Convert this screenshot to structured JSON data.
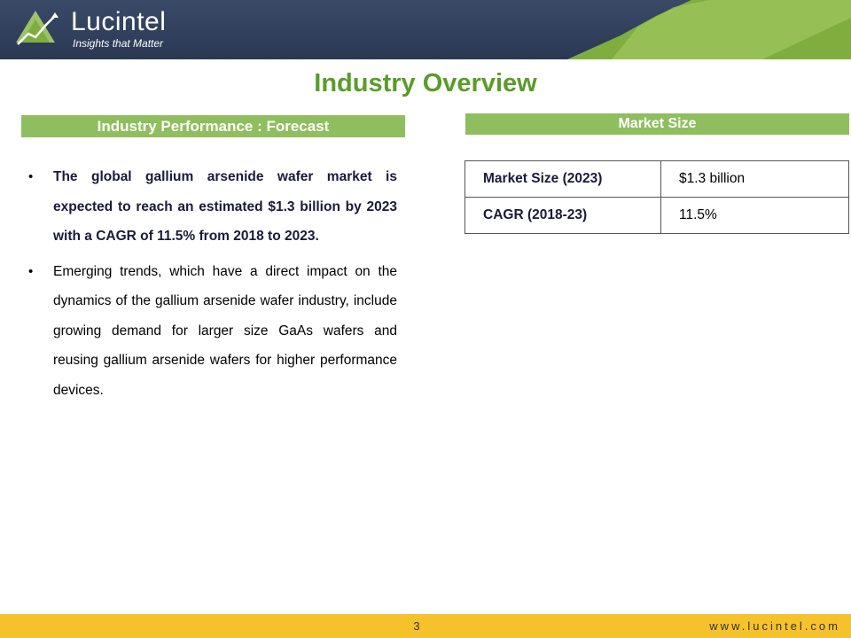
{
  "header": {
    "brand_name": "Lucintel",
    "tagline": "Insights that Matter",
    "logo_icon": "rising-chart-logo",
    "colors": {
      "navy": "#2f3e5c",
      "green": "#7fae3e",
      "light_green": "#a9cf6a"
    }
  },
  "page": {
    "title": "Industry Overview"
  },
  "left": {
    "section_title": "Industry Performance : Forecast",
    "bullets": [
      "The global gallium arsenide wafer market is expected to reach an estimated $1.3 billion by 2023 with a CAGR of 11.5% from 2018 to 2023.",
      "Emerging trends, which have a direct impact on the dynamics of the gallium arsenide wafer industry, include growing demand for larger size GaAs wafers and reusing gallium arsenide wafers for higher performance devices."
    ]
  },
  "right": {
    "section_title": "Market Size",
    "rows": [
      {
        "label": "Market Size (2023)",
        "value": "$1.3 billion"
      },
      {
        "label": "CAGR (2018-23)",
        "value": "11.5%"
      }
    ]
  },
  "footer": {
    "page_number": "3",
    "url": "www.lucintel.com",
    "color": "#f6c22c"
  },
  "accent": {
    "title_green": "#5a9c2a",
    "bar_green": "#8fbe5e"
  }
}
